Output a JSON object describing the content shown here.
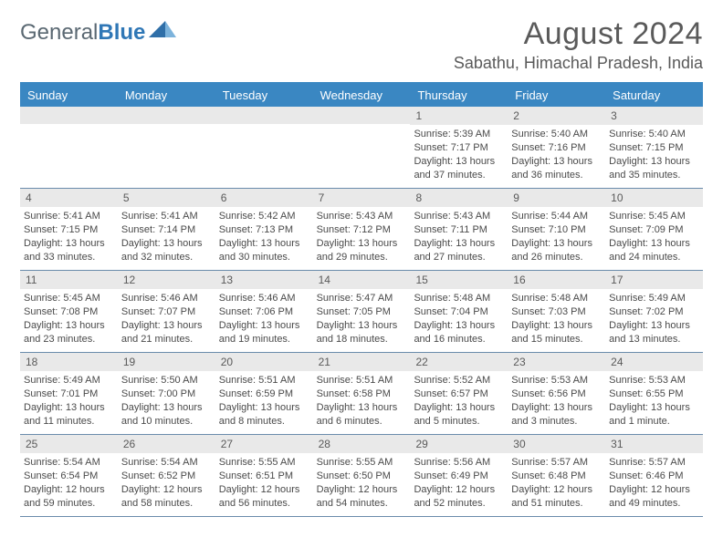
{
  "logo": {
    "word1": "General",
    "word2": "Blue"
  },
  "title": "August 2024",
  "location": "Sabathu, Himachal Pradesh, India",
  "colors": {
    "header_bar": "#3a87c2",
    "daynum_bg": "#e9e9e9",
    "week_border": "#6a8bab",
    "text": "#4a4a4a",
    "logo_gray": "#5a6872",
    "logo_blue": "#2f77b6"
  },
  "weekdays": [
    "Sunday",
    "Monday",
    "Tuesday",
    "Wednesday",
    "Thursday",
    "Friday",
    "Saturday"
  ],
  "startOffset": 4,
  "days": [
    {
      "n": 1,
      "sr": "5:39 AM",
      "ss": "7:17 PM",
      "dl": "13 hours and 37 minutes."
    },
    {
      "n": 2,
      "sr": "5:40 AM",
      "ss": "7:16 PM",
      "dl": "13 hours and 36 minutes."
    },
    {
      "n": 3,
      "sr": "5:40 AM",
      "ss": "7:15 PM",
      "dl": "13 hours and 35 minutes."
    },
    {
      "n": 4,
      "sr": "5:41 AM",
      "ss": "7:15 PM",
      "dl": "13 hours and 33 minutes."
    },
    {
      "n": 5,
      "sr": "5:41 AM",
      "ss": "7:14 PM",
      "dl": "13 hours and 32 minutes."
    },
    {
      "n": 6,
      "sr": "5:42 AM",
      "ss": "7:13 PM",
      "dl": "13 hours and 30 minutes."
    },
    {
      "n": 7,
      "sr": "5:43 AM",
      "ss": "7:12 PM",
      "dl": "13 hours and 29 minutes."
    },
    {
      "n": 8,
      "sr": "5:43 AM",
      "ss": "7:11 PM",
      "dl": "13 hours and 27 minutes."
    },
    {
      "n": 9,
      "sr": "5:44 AM",
      "ss": "7:10 PM",
      "dl": "13 hours and 26 minutes."
    },
    {
      "n": 10,
      "sr": "5:45 AM",
      "ss": "7:09 PM",
      "dl": "13 hours and 24 minutes."
    },
    {
      "n": 11,
      "sr": "5:45 AM",
      "ss": "7:08 PM",
      "dl": "13 hours and 23 minutes."
    },
    {
      "n": 12,
      "sr": "5:46 AM",
      "ss": "7:07 PM",
      "dl": "13 hours and 21 minutes."
    },
    {
      "n": 13,
      "sr": "5:46 AM",
      "ss": "7:06 PM",
      "dl": "13 hours and 19 minutes."
    },
    {
      "n": 14,
      "sr": "5:47 AM",
      "ss": "7:05 PM",
      "dl": "13 hours and 18 minutes."
    },
    {
      "n": 15,
      "sr": "5:48 AM",
      "ss": "7:04 PM",
      "dl": "13 hours and 16 minutes."
    },
    {
      "n": 16,
      "sr": "5:48 AM",
      "ss": "7:03 PM",
      "dl": "13 hours and 15 minutes."
    },
    {
      "n": 17,
      "sr": "5:49 AM",
      "ss": "7:02 PM",
      "dl": "13 hours and 13 minutes."
    },
    {
      "n": 18,
      "sr": "5:49 AM",
      "ss": "7:01 PM",
      "dl": "13 hours and 11 minutes."
    },
    {
      "n": 19,
      "sr": "5:50 AM",
      "ss": "7:00 PM",
      "dl": "13 hours and 10 minutes."
    },
    {
      "n": 20,
      "sr": "5:51 AM",
      "ss": "6:59 PM",
      "dl": "13 hours and 8 minutes."
    },
    {
      "n": 21,
      "sr": "5:51 AM",
      "ss": "6:58 PM",
      "dl": "13 hours and 6 minutes."
    },
    {
      "n": 22,
      "sr": "5:52 AM",
      "ss": "6:57 PM",
      "dl": "13 hours and 5 minutes."
    },
    {
      "n": 23,
      "sr": "5:53 AM",
      "ss": "6:56 PM",
      "dl": "13 hours and 3 minutes."
    },
    {
      "n": 24,
      "sr": "5:53 AM",
      "ss": "6:55 PM",
      "dl": "13 hours and 1 minute."
    },
    {
      "n": 25,
      "sr": "5:54 AM",
      "ss": "6:54 PM",
      "dl": "12 hours and 59 minutes."
    },
    {
      "n": 26,
      "sr": "5:54 AM",
      "ss": "6:52 PM",
      "dl": "12 hours and 58 minutes."
    },
    {
      "n": 27,
      "sr": "5:55 AM",
      "ss": "6:51 PM",
      "dl": "12 hours and 56 minutes."
    },
    {
      "n": 28,
      "sr": "5:55 AM",
      "ss": "6:50 PM",
      "dl": "12 hours and 54 minutes."
    },
    {
      "n": 29,
      "sr": "5:56 AM",
      "ss": "6:49 PM",
      "dl": "12 hours and 52 minutes."
    },
    {
      "n": 30,
      "sr": "5:57 AM",
      "ss": "6:48 PM",
      "dl": "12 hours and 51 minutes."
    },
    {
      "n": 31,
      "sr": "5:57 AM",
      "ss": "6:46 PM",
      "dl": "12 hours and 49 minutes."
    }
  ],
  "labels": {
    "sunrise": "Sunrise:",
    "sunset": "Sunset:",
    "daylight": "Daylight:"
  }
}
